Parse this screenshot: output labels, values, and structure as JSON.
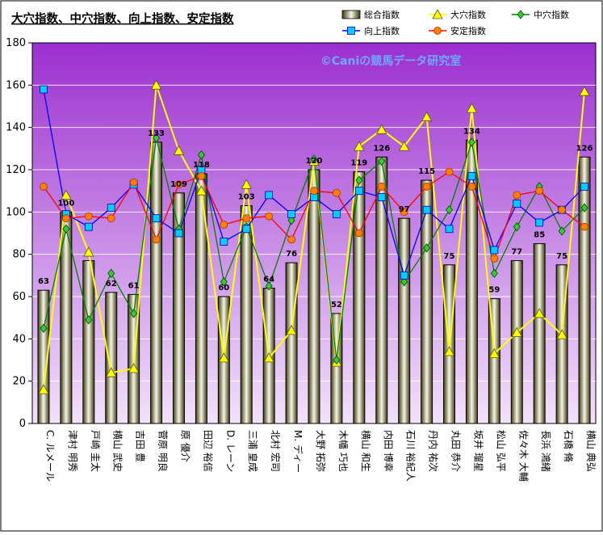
{
  "chart_data": {
    "type": "bar",
    "title": "大穴指数、中穴指数、向上指数、安定指数",
    "watermark": "©Caniの競馬データ研究室",
    "ylim": [
      0,
      180
    ],
    "yticks": [
      0,
      20,
      40,
      60,
      80,
      100,
      120,
      140,
      160,
      180
    ],
    "grid": true,
    "legend_position": "top-right",
    "categories": [
      "C. ルメール",
      "津村 明秀",
      "戸崎 圭太",
      "横山 武史",
      "吉田 豊",
      "菅原 明良",
      "原 優介",
      "田辺 裕信",
      "D. レーン",
      "三浦 皇成",
      "北村 宏司",
      "M. ディー",
      "大野 拓弥",
      "木幡 巧也",
      "横山 和生",
      "内田 博幸",
      "石川 裕紀人",
      "丹内 祐次",
      "丸田 恭介",
      "坂井 瑠星",
      "松山 弘平",
      "佐々木 大輔",
      "長浜 鴻緒",
      "石橋 脩",
      "横山 典弘"
    ],
    "series": [
      {
        "name": "総合指数",
        "type": "bar",
        "values": [
          63,
          100,
          77,
          62,
          61,
          133,
          109,
          118,
          60,
          103,
          64,
          76,
          120,
          52,
          119,
          126,
          97,
          115,
          75,
          134,
          59,
          77,
          85,
          75,
          126
        ],
        "labels": [
          "63",
          "100",
          "",
          "62",
          "61",
          "133",
          "109",
          "118",
          "60",
          "103",
          "64",
          "76",
          "120",
          "52",
          "119",
          "126",
          "97",
          "115",
          "75",
          "134",
          "59",
          "77",
          "85",
          "75",
          "126"
        ]
      },
      {
        "name": "大穴指数",
        "type": "line",
        "color": "#ffff00",
        "values": [
          16,
          108,
          81,
          24,
          26,
          160,
          129,
          110,
          31,
          113,
          31,
          44,
          124,
          29,
          131,
          139,
          131,
          145,
          34,
          149,
          33,
          43,
          52,
          42,
          157
        ]
      },
      {
        "name": "中穴指数",
        "type": "line",
        "color": "#008000",
        "values": [
          45,
          92,
          49,
          71,
          52,
          135,
          92,
          127,
          67,
          93,
          65,
          96,
          125,
          30,
          115,
          124,
          67,
          83,
          101,
          133,
          71,
          93,
          112,
          91,
          102
        ]
      },
      {
        "name": "向上指数",
        "type": "line",
        "color": "#0000ff",
        "values": [
          158,
          99,
          93,
          102,
          113,
          97,
          90,
          120,
          86,
          92,
          108,
          99,
          107,
          99,
          110,
          107,
          70,
          101,
          92,
          117,
          82,
          104,
          95,
          101,
          112
        ]
      },
      {
        "name": "安定指数",
        "type": "line",
        "color": "#ff0000",
        "values": [
          112,
          97,
          98,
          97,
          114,
          87,
          113,
          117,
          94,
          97,
          98,
          87,
          110,
          109,
          90,
          112,
          100,
          112,
          119,
          112,
          78,
          108,
          110,
          101,
          93
        ]
      }
    ]
  },
  "colors": {
    "plot_top": "#9b2fcf",
    "plot_bottom": "#f2e2fb",
    "bar_fill_edge": "#3d3a10",
    "bar_fill_mid": "#f7f7e6",
    "line_big": "#ffff00",
    "line_mid": "#008000",
    "line_up": "#0000ff",
    "line_stable": "#ff0000",
    "marker_up": "#00ccff",
    "marker_stable": "#ff8000",
    "marker_mid": "#33cc33",
    "watermark": "#6fa8ff"
  }
}
